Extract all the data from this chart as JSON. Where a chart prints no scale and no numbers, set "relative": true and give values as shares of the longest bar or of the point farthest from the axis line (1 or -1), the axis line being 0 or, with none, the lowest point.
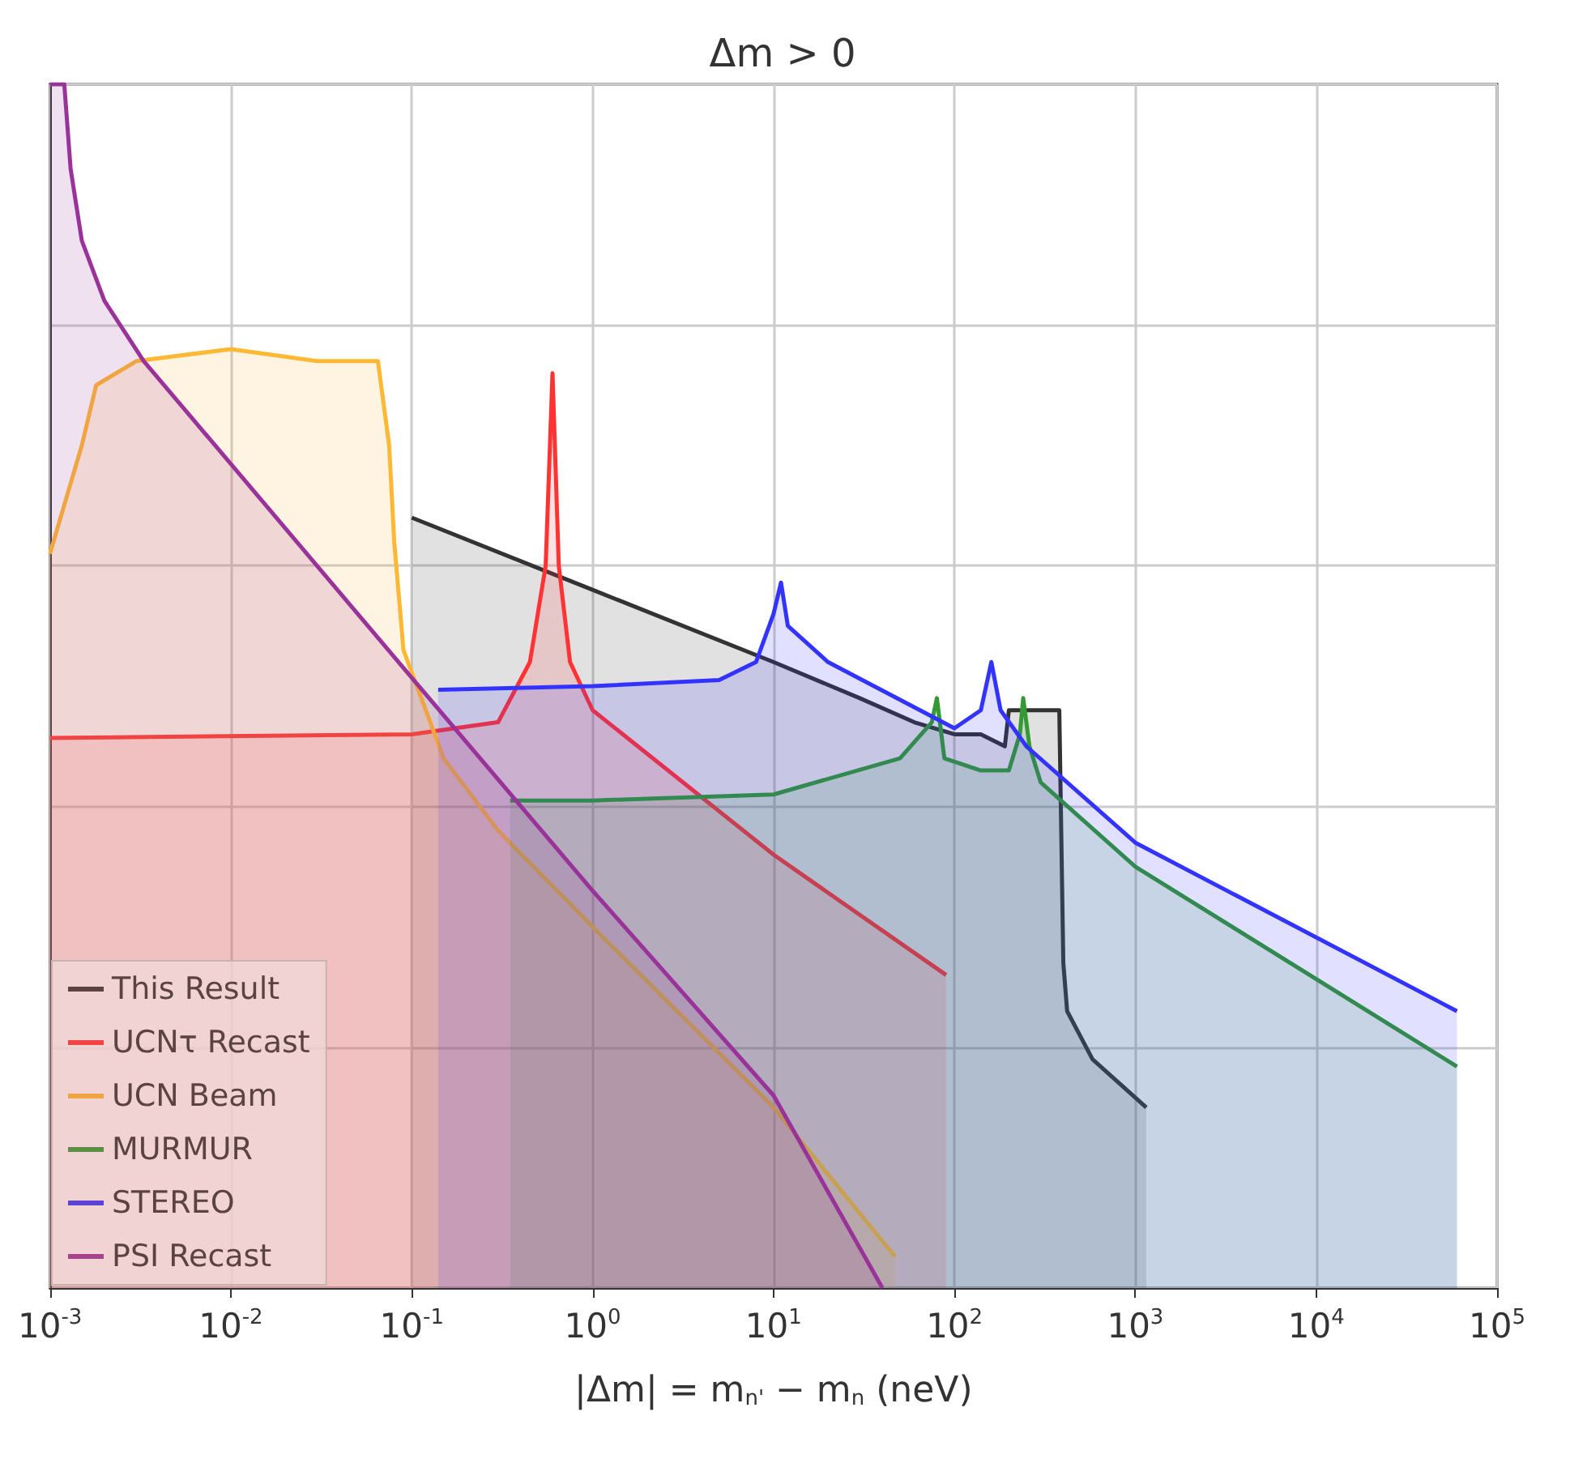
{
  "chart_data": {
    "type": "area",
    "title": "Δm > 0",
    "xlabel": "|Δm| = m$_{n'}$ − m$_{n}$ (neV)",
    "relative": true,
    "log": "x",
    "grid": true,
    "legend": "bottom left",
    "xlim": [
      0.001,
      100000
    ],
    "xticks": [
      {
        "value": 0.001,
        "label": "10$^{-3}$"
      },
      {
        "value": 0.01,
        "label": "10$^{-2}$"
      },
      {
        "value": 0.1,
        "label": "10$^{-1}$"
      },
      {
        "value": 1,
        "label": "10$^{0}$"
      },
      {
        "value": 10,
        "label": "10$^{1}$"
      },
      {
        "value": 100,
        "label": "10$^{2}$"
      },
      {
        "value": 1000,
        "label": "10$^{3}$"
      },
      {
        "value": 10000,
        "label": "10$^{4}$"
      },
      {
        "value": 100000,
        "label": "10$^{5}$"
      }
    ],
    "series": [
      {
        "name": "This Result",
        "color": "#333333",
        "x": [
          0.1,
          1,
          10,
          30,
          60,
          100,
          140,
          190,
          200,
          250,
          380,
          400,
          420,
          580,
          1150
        ],
        "values": [
          0.64,
          0.58,
          0.52,
          0.49,
          0.47,
          0.46,
          0.46,
          0.45,
          0.48,
          0.48,
          0.48,
          0.27,
          0.23,
          0.19,
          0.15
        ]
      },
      {
        "name": "UCNτ Recast",
        "color": "#ff3333",
        "x": [
          0.001,
          0.1,
          0.3,
          0.45,
          0.55,
          0.6,
          0.65,
          0.75,
          1,
          10,
          90
        ],
        "values": [
          0.457,
          0.46,
          0.47,
          0.52,
          0.6,
          0.76,
          0.6,
          0.52,
          0.48,
          0.36,
          0.26
        ]
      },
      {
        "name": "UCN Beam",
        "color": "#ffb833",
        "x": [
          0.001,
          0.0015,
          0.0018,
          0.003,
          0.01,
          0.03,
          0.065,
          0.075,
          0.08,
          0.09,
          0.15,
          0.3,
          1,
          10,
          47
        ],
        "values": [
          0.61,
          0.7,
          0.75,
          0.77,
          0.78,
          0.77,
          0.77,
          0.7,
          0.62,
          0.53,
          0.44,
          0.38,
          0.3,
          0.15,
          0.026
        ]
      },
      {
        "name": "MURMUR",
        "color": "#339933",
        "x": [
          0.35,
          1,
          10,
          50,
          75,
          80,
          88,
          140,
          200,
          230,
          240,
          260,
          300,
          1000,
          60000
        ],
        "values": [
          0.405,
          0.405,
          0.41,
          0.44,
          0.47,
          0.49,
          0.44,
          0.43,
          0.43,
          0.46,
          0.49,
          0.45,
          0.42,
          0.35,
          0.184
        ]
      },
      {
        "name": "STEREO",
        "color": "#3333ff",
        "x": [
          0.14,
          1,
          5,
          8,
          10,
          11,
          12,
          20,
          100,
          140,
          160,
          180,
          250,
          1000,
          60000
        ],
        "values": [
          0.497,
          0.5,
          0.505,
          0.52,
          0.56,
          0.586,
          0.55,
          0.52,
          0.465,
          0.48,
          0.52,
          0.48,
          0.45,
          0.37,
          0.23
        ]
      },
      {
        "name": "PSI Recast",
        "color": "#993399",
        "x": [
          0.001,
          0.0012,
          0.0013,
          0.0015,
          0.002,
          0.0033,
          0.1,
          1,
          10,
          40
        ],
        "values": [
          1,
          1,
          0.93,
          0.87,
          0.82,
          0.77,
          0.507,
          0.33,
          0.16,
          0
        ]
      }
    ]
  }
}
